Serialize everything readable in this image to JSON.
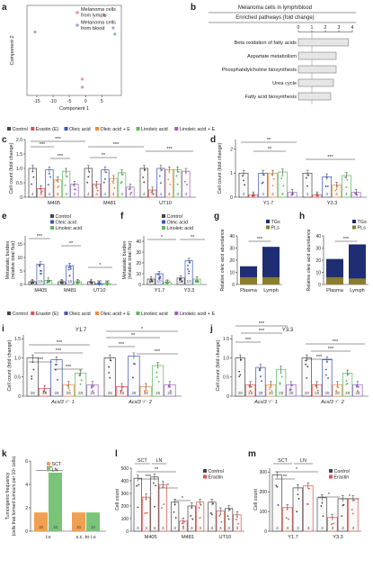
{
  "colors": {
    "control": "#444444",
    "erastin": "#e0524b",
    "oleic": "#3a55b5",
    "oleic_e": "#f08a3c",
    "linoleic": "#5cb85c",
    "linoleic_e": "#9b5fc4",
    "tg": "#1f2d73",
    "pl": "#8a7d2e",
    "sct": "#f0a050",
    "ln": "#7ac47a",
    "bar_grey": "#e6e6e6",
    "pca_blood": "#9aa8d8",
    "pca_lymph": "#e39aa0"
  },
  "panels": {
    "a": "a",
    "b": "b",
    "c": "c",
    "d": "d",
    "e": "e",
    "f": "f",
    "g": "g",
    "h": "h",
    "i": "i",
    "j": "j",
    "k": "k",
    "l": "l",
    "m": "m"
  },
  "legends": {
    "lymph": "Melanoma cells from lymph",
    "blood": "Melanoma cells from blood",
    "control": "Control",
    "erastin": "Erastin (E)",
    "oleic": "Oleic acid",
    "oleic_e": "Oleic acid + E",
    "linoleic": "Linoleic acid",
    "linoleic_e": "Linoleic acid + E",
    "tgs": "TGs",
    "pls": "PLs",
    "sct": "SCT",
    "ln": "LN",
    "erastin_short": "Erastin"
  },
  "labels": {
    "b_title": "Melanoma cells in lymph/blood",
    "b_subtitle": "Enriched pathways (fold change)",
    "cell_count_fc": "Cell count (fold change)",
    "metastatic_burden": "Metastatic burden (relative total flux)",
    "oleic_abundance": "Relative oleic acid abundance",
    "tumorigenic": "Tumorigenic frequency (cells that formed tumours per 10⁵ cells)",
    "cell_count": "Cell count",
    "i_title": "Y1.7",
    "j_title": "Y3.3",
    "acsl_1": "Acsl3⁻/⁻ 1",
    "acsl_2": "Acsl3⁻/⁻ 2",
    "sig1": "*",
    "sig2": "**",
    "sig3": "***"
  },
  "chart_data": [
    {
      "panel": "a",
      "type": "scatter",
      "xlabel": "Component 1",
      "ylabel": "Component 2",
      "xticks": [
        "-15",
        "-10",
        "-5",
        "0",
        "5"
      ],
      "series": [
        {
          "name": "Melanoma cells from lymph",
          "points": [
            [
              6,
              7.5
            ],
            [
              -1,
              -8
            ],
            [
              -1,
              -10
            ]
          ]
        },
        {
          "name": "Melanoma cells from blood",
          "points": [
            [
              -15.5,
              3.5
            ],
            [
              8.5,
              4.5
            ],
            [
              9,
              3
            ]
          ]
        }
      ]
    },
    {
      "panel": "b",
      "type": "bar",
      "title": "Melanoma cells in lymph/blood",
      "subtitle": "Enriched pathways (fold change)",
      "xticks": [
        "0",
        "1",
        "2",
        "3",
        "4"
      ],
      "categories": [
        "Beta oxidation of fatty acids",
        "Aspartate metabolism",
        "Phosphatidylcholine biosynthesis",
        "Urea cycle",
        "Fatty acid biosynthesis"
      ],
      "values": [
        3.7,
        2.8,
        2.8,
        2.6,
        2.4
      ]
    },
    {
      "panel": "c",
      "type": "bar",
      "ylabel": "Cell count (fold change)",
      "yticks": [
        "0",
        "0.5",
        "1.0",
        "1.5",
        "2.0"
      ],
      "ylim": [
        0,
        2.0
      ],
      "groups": [
        "M405",
        "M481",
        "UT10"
      ],
      "series_keys": [
        "control",
        "erastin",
        "oleic",
        "oleic_e",
        "linoleic",
        "linoleic_e"
      ],
      "values": [
        [
          1.0,
          0.3,
          0.95,
          0.6,
          0.9,
          0.45
        ],
        [
          1.0,
          0.45,
          0.95,
          0.65,
          0.85,
          0.35
        ],
        [
          1.0,
          0.25,
          1.0,
          0.95,
          0.95,
          0.9
        ]
      ],
      "n": [
        [
          4,
          4,
          4,
          4,
          4,
          4
        ],
        [
          4,
          4,
          4,
          4,
          4,
          4
        ],
        [
          4,
          4,
          4,
          4,
          4,
          4
        ]
      ]
    },
    {
      "panel": "d",
      "type": "bar",
      "ylabel": "Cell count (fold change)",
      "yticks": [
        "0",
        "1",
        "2"
      ],
      "ylim": [
        0,
        2.4
      ],
      "groups": [
        "Y1.7",
        "Y3.3"
      ],
      "series_keys": [
        "control",
        "erastin",
        "oleic",
        "oleic_e",
        "linoleic",
        "linoleic_e"
      ],
      "values": [
        [
          1.0,
          0.1,
          1.0,
          1.0,
          1.05,
          0.2
        ],
        [
          1.0,
          0.1,
          0.85,
          0.5,
          0.9,
          0.2
        ]
      ],
      "n": [
        [
          4,
          4,
          4,
          4,
          4,
          4
        ],
        [
          4,
          4,
          4,
          4,
          4,
          4
        ]
      ]
    },
    {
      "panel": "e",
      "type": "bar",
      "ylabel": "Metastatic burden (relative total flux)",
      "yticks": [
        "0",
        "5",
        "10",
        "15"
      ],
      "ylim": [
        0,
        18
      ],
      "groups": [
        "M405",
        "M481",
        "UT10"
      ],
      "series_keys": [
        "control",
        "oleic",
        "linoleic"
      ],
      "values": [
        [
          1.0,
          7.5,
          1.5
        ],
        [
          1.0,
          7.0,
          1.0
        ],
        [
          1.0,
          0.3,
          0.3
        ]
      ],
      "n": [
        [
          20,
          19,
          10
        ],
        [
          15,
          15,
          10
        ],
        [
          5,
          10,
          10
        ]
      ]
    },
    {
      "panel": "f",
      "type": "bar",
      "ylabel": "Metastatic burden (relative total flux)",
      "yticks": [
        "0",
        "10",
        "20",
        "30",
        "40"
      ],
      "ylim": [
        0,
        45
      ],
      "groups": [
        "Y1.7",
        "Y3.3"
      ],
      "series_keys": [
        "control",
        "oleic",
        "linoleic"
      ],
      "values": [
        [
          5,
          10,
          2
        ],
        [
          6,
          22,
          5
        ]
      ],
      "n": [
        [
          10,
          10,
          10
        ],
        [
          10,
          10,
          10
        ]
      ]
    },
    {
      "panel": "g",
      "type": "bar",
      "ylabel": "Relative oleic acid abundance",
      "yticks": [
        "0",
        "10",
        "20",
        "30",
        "40"
      ],
      "ylim": [
        0,
        40
      ],
      "categories": [
        "Plasma",
        "Lymph"
      ],
      "series": [
        {
          "name": "TGs",
          "values": [
            15,
            31
          ]
        },
        {
          "name": "PLs",
          "values": [
            6,
            6
          ]
        }
      ]
    },
    {
      "panel": "h",
      "type": "bar",
      "ylabel": "Relative oleic acid abundance",
      "yticks": [
        "0",
        "10",
        "20",
        "30",
        "40"
      ],
      "ylim": [
        0,
        40
      ],
      "categories": [
        "Plasma",
        "Lymph"
      ],
      "series": [
        {
          "name": "TGs",
          "values": [
            21,
            33
          ]
        },
        {
          "name": "PLs",
          "values": [
            6,
            5
          ]
        }
      ]
    },
    {
      "panel": "i",
      "type": "bar",
      "title": "Y1.7",
      "ylabel": "Cell count (fold change)",
      "yticks": [
        "0",
        "0.5",
        "1.0",
        "1.5"
      ],
      "ylim": [
        0,
        1.6
      ],
      "groups": [
        "Acsl3⁻/⁻ 1",
        "Acsl3⁻/⁻ 2"
      ],
      "series_keys": [
        "control",
        "erastin",
        "oleic",
        "oleic_e",
        "linoleic",
        "linoleic_e"
      ],
      "values": [
        [
          1.0,
          0.2,
          0.95,
          0.3,
          0.6,
          0.3
        ],
        [
          1.0,
          0.25,
          1.05,
          0.25,
          0.8,
          0.3
        ]
      ],
      "n": [
        [
          28,
          28,
          28,
          28,
          28,
          28
        ],
        [
          28,
          28,
          28,
          28,
          28,
          28
        ]
      ]
    },
    {
      "panel": "j",
      "type": "bar",
      "title": "Y3.3",
      "ylabel": "Cell count (fold change)",
      "yticks": [
        "0",
        "0.5",
        "1.0",
        "1.5"
      ],
      "ylim": [
        0,
        1.6
      ],
      "groups": [
        "Acsl3⁻/⁻ 1",
        "Acsl3⁻/⁻ 2"
      ],
      "series_keys": [
        "control",
        "erastin",
        "oleic",
        "oleic_e",
        "linoleic",
        "linoleic_e"
      ],
      "values": [
        [
          1.0,
          0.3,
          0.75,
          0.3,
          0.7,
          0.3
        ],
        [
          1.0,
          0.3,
          0.95,
          0.3,
          0.6,
          0.3
        ]
      ],
      "n": [
        [
          28,
          28,
          28,
          28,
          28,
          28
        ],
        [
          28,
          28,
          28,
          28,
          28,
          28
        ]
      ]
    },
    {
      "panel": "k",
      "type": "bar",
      "ylabel": "Tumorigenic frequency (cells that formed tumours per 10⁵ cells)",
      "yticks": [
        "0",
        "2",
        "4",
        "6"
      ],
      "ylim": [
        0,
        6
      ],
      "categories": [
        "i.v.",
        "s.c. to i.v."
      ],
      "series": [
        {
          "name": "SCT",
          "values": [
            1.6,
            1.6
          ]
        },
        {
          "name": "LN",
          "values": [
            5.0,
            1.6
          ]
        }
      ],
      "n": [
        [
          10,
          10
        ],
        [
          10,
          10
        ]
      ]
    },
    {
      "panel": "l",
      "type": "bar",
      "ylabel": "Cell count",
      "yticks": [
        "0",
        "100",
        "200",
        "300",
        "400",
        "500"
      ],
      "ylim": [
        0,
        500
      ],
      "groups": [
        "M405",
        "M481",
        "UT10"
      ],
      "subgroups": [
        "SCT",
        "LN"
      ],
      "series": [
        {
          "name": "Control",
          "values": [
            [
              420,
              430
            ],
            [
              230,
              200
            ],
            [
              230,
              180
            ]
          ]
        },
        {
          "name": "Erastin",
          "values": [
            [
              270,
              370
            ],
            [
              80,
              230
            ],
            [
              160,
              130
            ]
          ]
        }
      ],
      "n": 3
    },
    {
      "panel": "m",
      "type": "bar",
      "ylabel": "Cell count",
      "yticks": [
        "0",
        "100",
        "200",
        "300"
      ],
      "ylim": [
        0,
        320
      ],
      "groups": [
        "Y1.7",
        "Y3.3"
      ],
      "subgroups": [
        "SCT",
        "LN"
      ],
      "series": [
        {
          "name": "Control",
          "values": [
            [
              285,
              220
            ],
            [
              170,
              165
            ]
          ]
        },
        {
          "name": "Erastin",
          "values": [
            [
              120,
              230
            ],
            [
              70,
              165
            ]
          ]
        }
      ],
      "n": 3
    }
  ]
}
